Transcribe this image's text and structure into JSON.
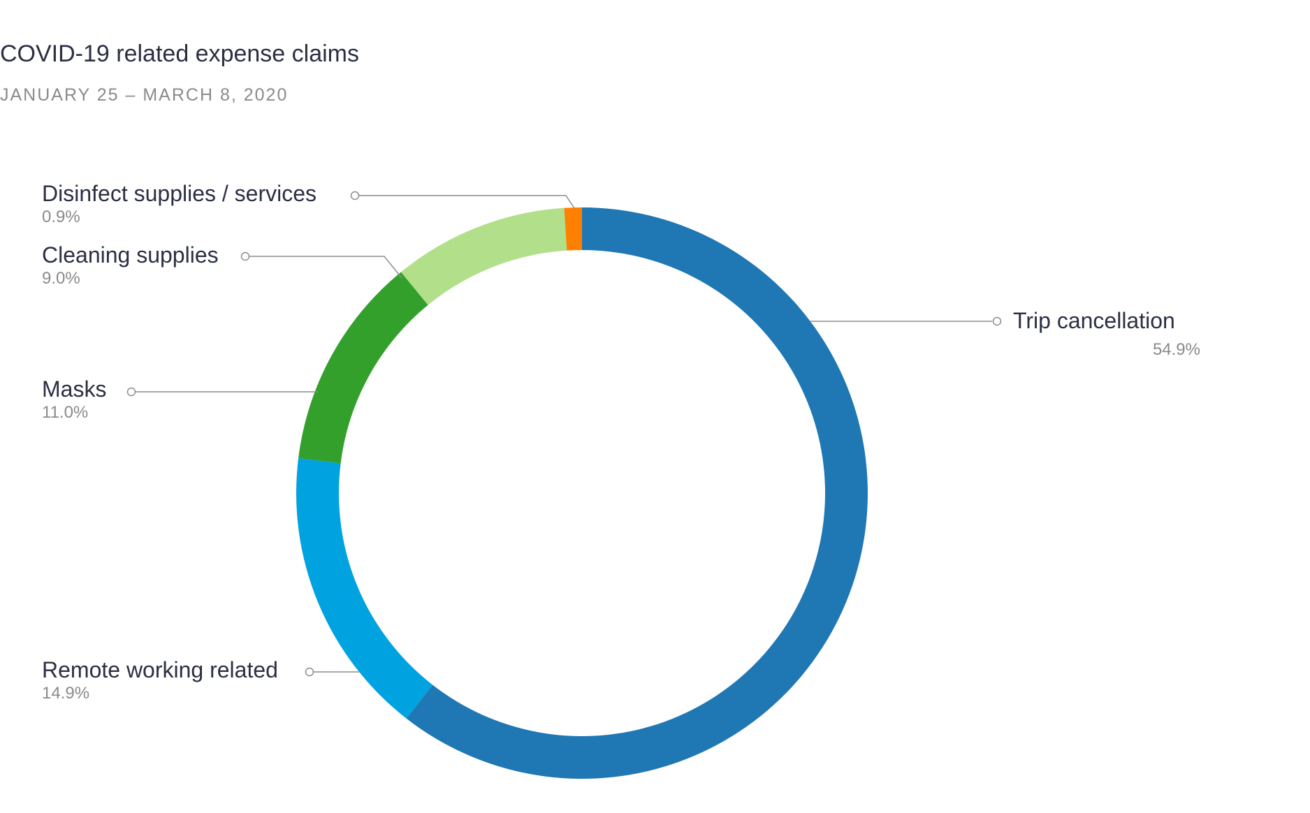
{
  "header": {
    "title": "COVID-19 related expense claims",
    "subtitle": "JANUARY 25 – MARCH 8, 2020"
  },
  "chart_data": {
    "type": "pie",
    "donut": true,
    "title": "COVID-19 related expense claims",
    "subtitle": "JANUARY 25 – MARCH 8, 2020",
    "legend": "none",
    "slices": [
      {
        "label": "Trip cancellation",
        "value": 54.9,
        "value_label": "54.9%",
        "color": "#1f77b4"
      },
      {
        "label": "Remote working related",
        "value": 14.9,
        "value_label": "14.9%",
        "color": "#00a2e0"
      },
      {
        "label": "Masks",
        "value": 11.0,
        "value_label": "11.0%",
        "color": "#33a02c"
      },
      {
        "label": "Cleaning supplies",
        "value": 9.0,
        "value_label": "9.0%",
        "color": "#b2df8a"
      },
      {
        "label": "Disinfect supplies / services",
        "value": 0.9,
        "value_label": "0.9%",
        "color": "#ff7f00"
      }
    ]
  }
}
